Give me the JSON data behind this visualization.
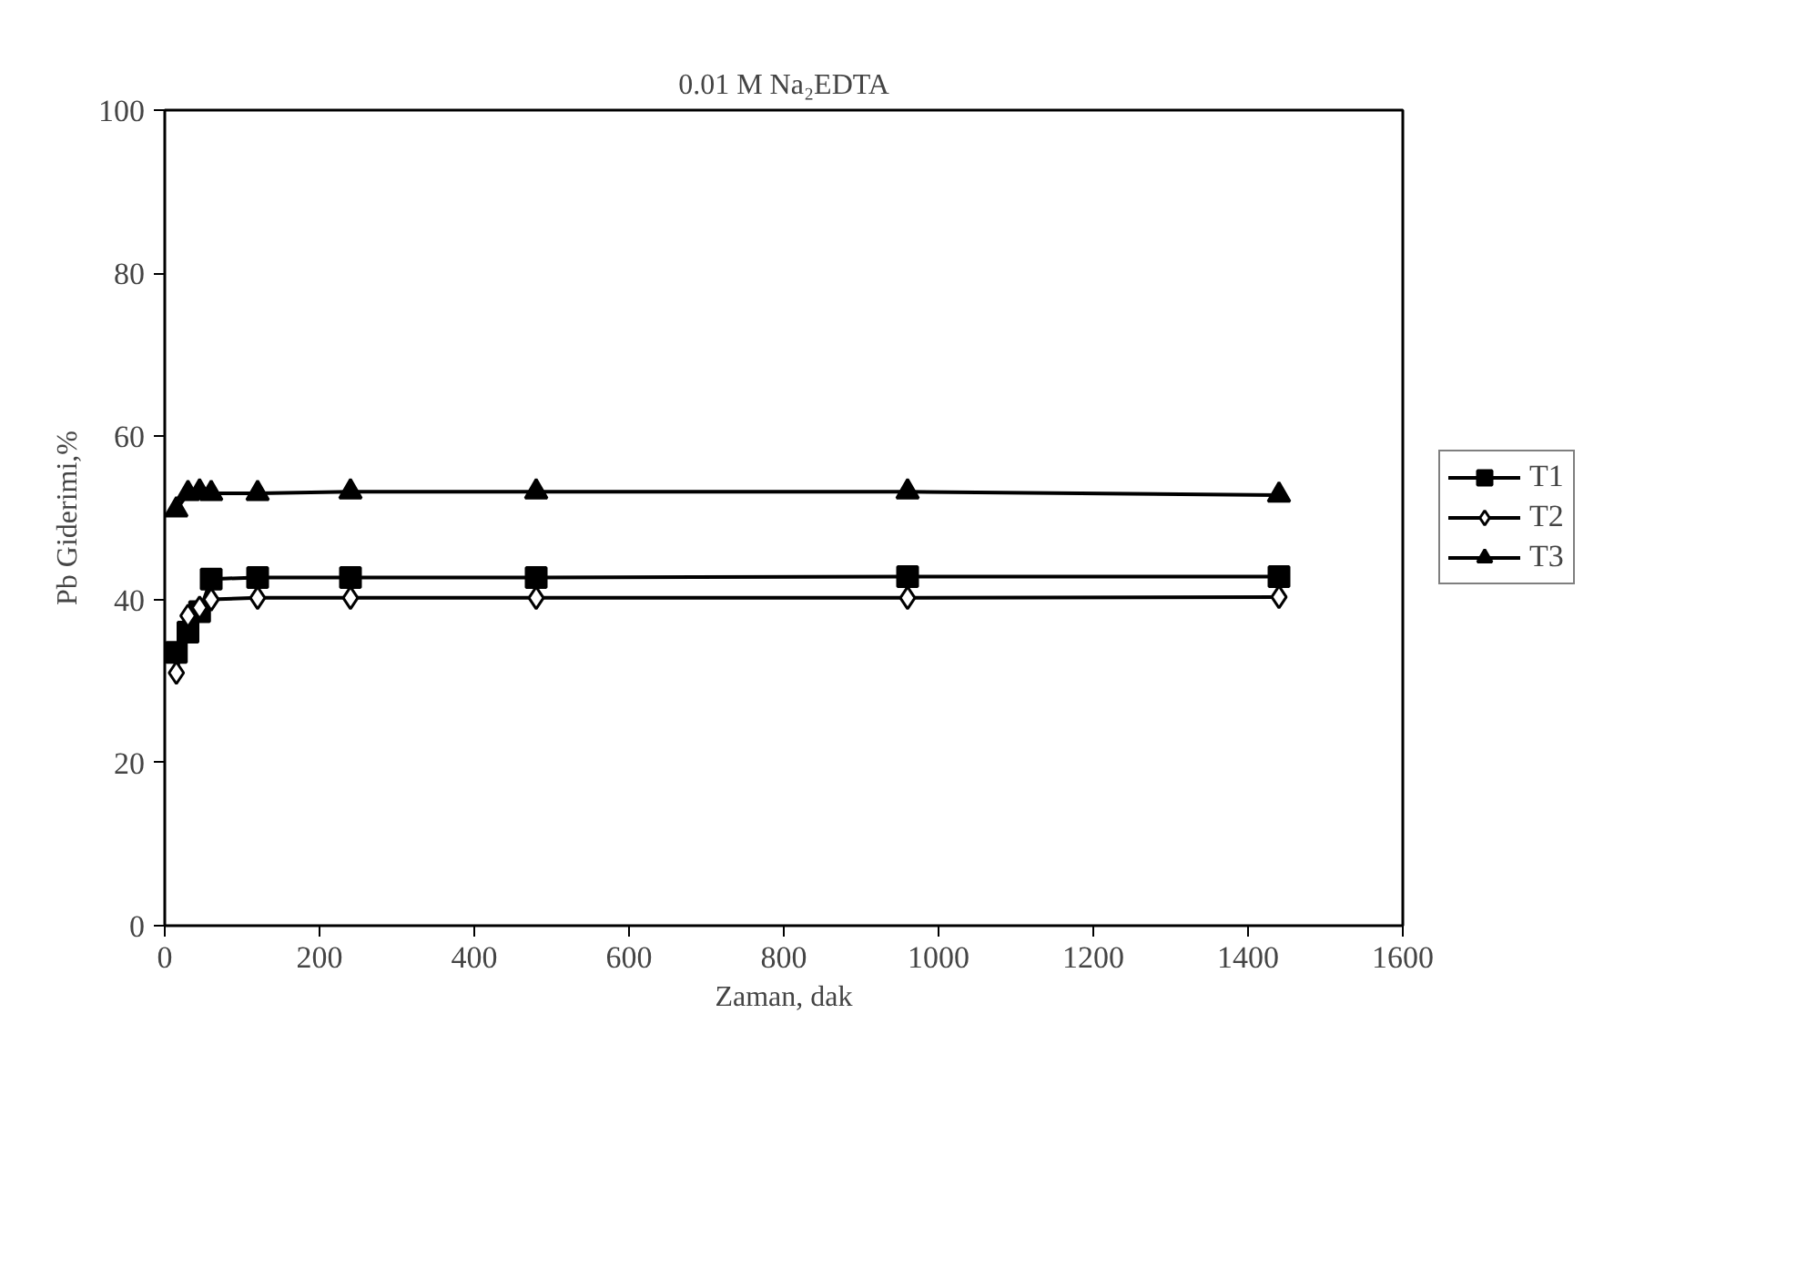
{
  "chart_data": {
    "type": "line",
    "title": "0.01 M Na₂EDTA",
    "xlabel": "Zaman, dak",
    "ylabel": "Pb Giderimi,%",
    "x": [
      15,
      30,
      45,
      60,
      120,
      240,
      480,
      960,
      1440
    ],
    "series": [
      {
        "name": "T1",
        "color": "#000000",
        "marker": "square",
        "values": [
          33.5,
          36,
          38.5,
          42.5,
          42.7,
          42.7,
          42.7,
          42.8,
          42.8
        ]
      },
      {
        "name": "T2",
        "color": "#000000",
        "marker": "diamond",
        "values": [
          31,
          38,
          39,
          40,
          40.2,
          40.2,
          40.2,
          40.2,
          40.3
        ]
      },
      {
        "name": "T3",
        "color": "#000000",
        "marker": "triangle",
        "values": [
          51,
          53,
          53.2,
          53,
          53,
          53.2,
          53.2,
          53.2,
          52.8
        ]
      }
    ],
    "xlim": [
      0,
      1600
    ],
    "xticks": [
      0,
      200,
      400,
      600,
      800,
      1000,
      1200,
      1400,
      1600
    ],
    "ylim": [
      0,
      100
    ],
    "yticks": [
      0,
      20,
      40,
      60,
      80,
      100
    ],
    "grid": false,
    "legend": "right"
  }
}
